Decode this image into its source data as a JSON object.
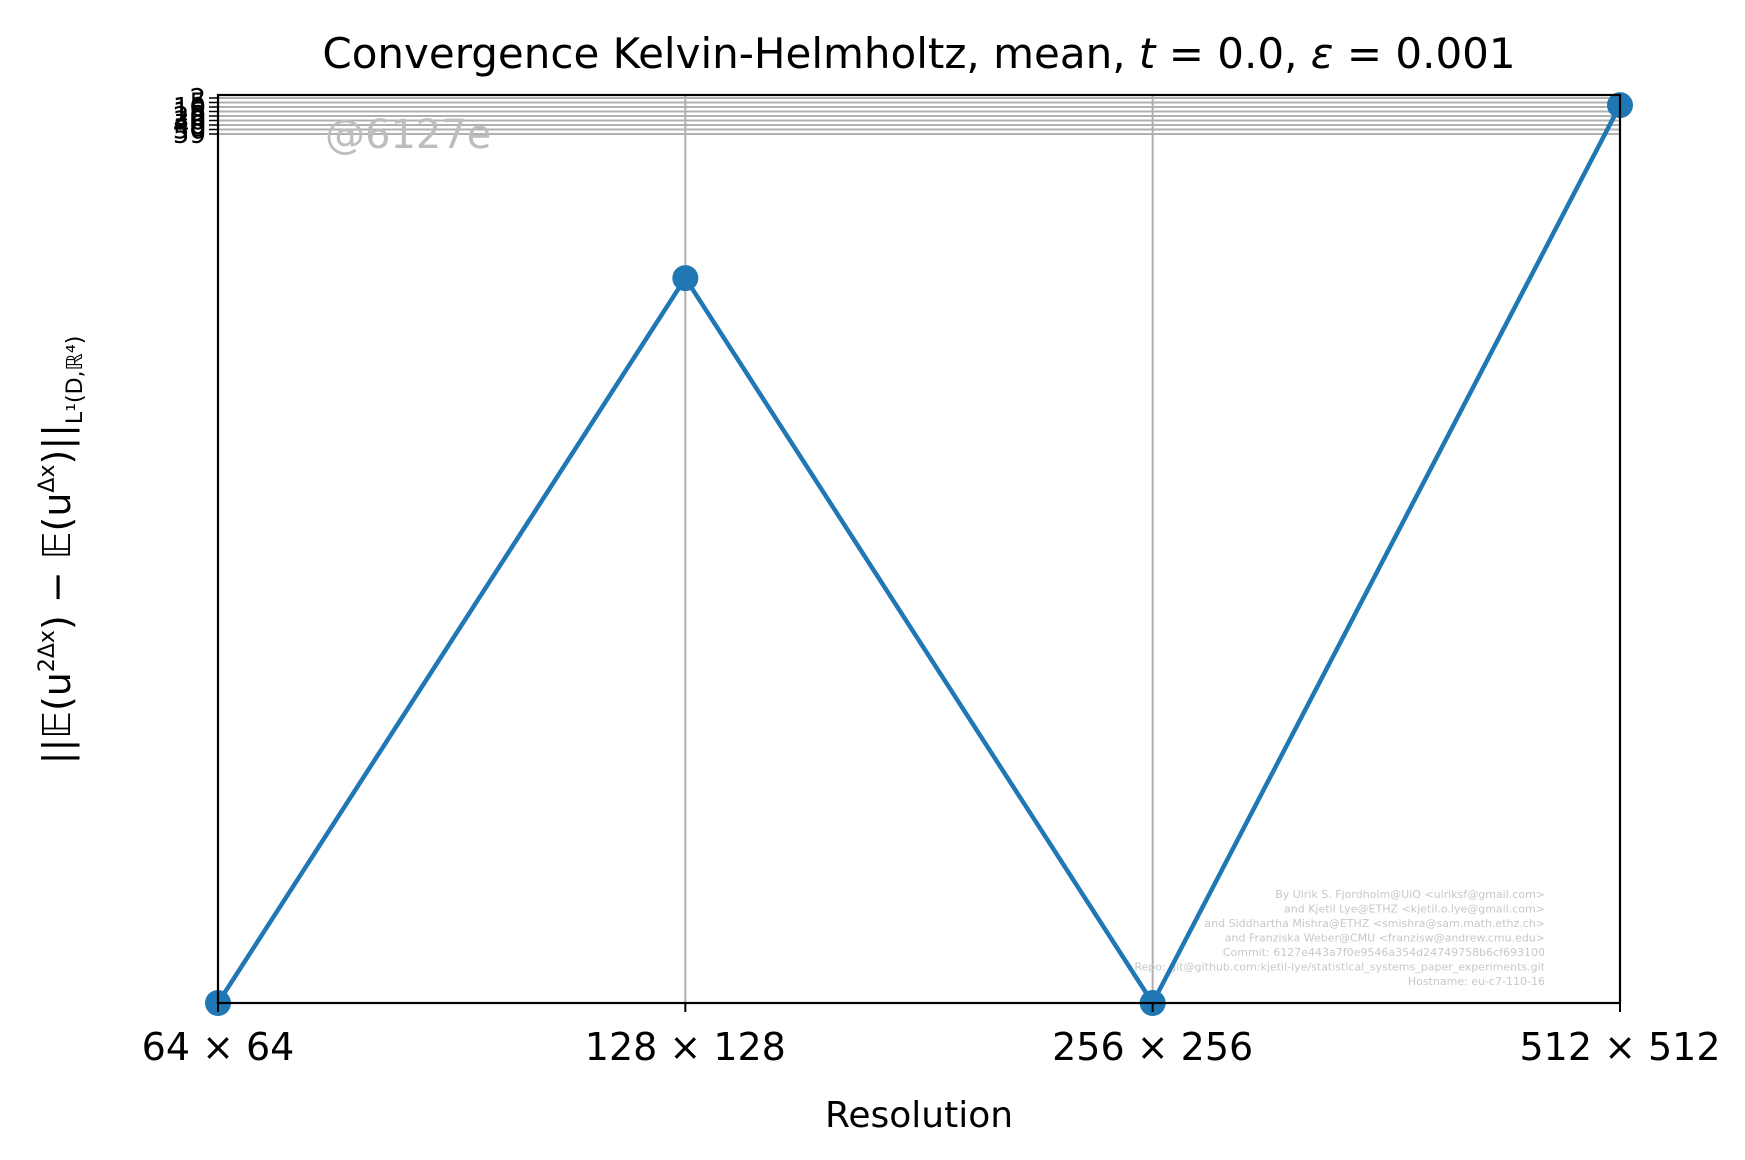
{
  "chart_data": {
    "type": "line",
    "title": "Convergence Kelvin-Helmholtz, mean, t = 0.0, ε = 0.001",
    "xlabel": "Resolution",
    "ylabel": "||𝔼(u^{2Δx}) − 𝔼(u^{Δx})||_{L¹(D,ℝ⁴)}",
    "categories": [
      "64 × 64",
      "128 × 128",
      "256 × 256",
      "512 × 512"
    ],
    "y_scale": "log",
    "series": [
      {
        "color": "#1f77b4",
        "values": [
          1e-17,
          1e-15,
          1e-17,
          3e-15
        ]
      }
    ],
    "ylim": [
      1e-17,
      3.2e-15
    ],
    "ytick_labels_overlapping": [
      "2",
      "5",
      "10",
      "15",
      "20",
      "30",
      "40",
      "50",
      "59"
    ],
    "grid": true,
    "legend": "none",
    "watermark": "@6127e",
    "credits": [
      "By Ulrik S. Fjordholm@UiO <ulriksf@gmail.com>",
      "and Kjetil Lye@ETHZ <kjetil.o.lye@gmail.com>",
      "and Siddhartha Mishra@ETHZ <smishra@sam.math.ethz.ch>",
      "and Franziska Weber@CMU <franzisw@andrew.cmu.edu>",
      "Commit: 6127e443a7f0e9546a354d24749758b6cf693100",
      "Repo: git@github.com:kjetil-lye/statistical_systems_paper_experiments.git",
      "Hostname: eu-c7-110-16"
    ]
  }
}
